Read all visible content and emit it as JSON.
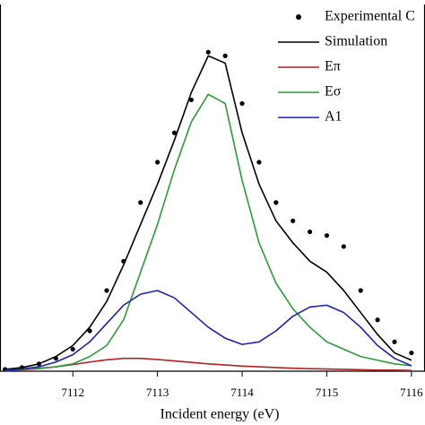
{
  "chart_data": {
    "type": "line",
    "x_label": "Incident energy (eV)",
    "x": [
      7111.2,
      7111.4,
      7111.6,
      7111.8,
      7112.0,
      7112.2,
      7112.4,
      7112.6,
      7112.8,
      7113.0,
      7113.2,
      7113.4,
      7113.6,
      7113.8,
      7114.0,
      7114.2,
      7114.4,
      7114.6,
      7114.8,
      7115.0,
      7115.2,
      7115.4,
      7115.6,
      7115.8,
      7116.0
    ],
    "xlim": [
      7111.14,
      7116.16
    ],
    "xticks": [
      7111,
      7112,
      7113,
      7114,
      7115,
      7116
    ],
    "ylim": [
      0,
      1
    ],
    "legend": "upper right",
    "series": [
      {
        "name": "Experimental C",
        "color": "#000000",
        "style": "dots",
        "values": [
          0.005,
          0.01,
          0.02,
          0.035,
          0.06,
          0.11,
          0.22,
          0.3,
          0.46,
          0.57,
          0.65,
          0.74,
          0.87,
          0.86,
          0.73,
          0.57,
          0.46,
          0.41,
          0.38,
          0.37,
          0.34,
          0.22,
          0.14,
          0.08,
          0.05
        ]
      },
      {
        "name": "Simulation",
        "color": "#000000",
        "style": "line",
        "values": [
          0.005,
          0.01,
          0.02,
          0.04,
          0.07,
          0.12,
          0.19,
          0.29,
          0.4,
          0.51,
          0.63,
          0.76,
          0.86,
          0.84,
          0.65,
          0.51,
          0.41,
          0.35,
          0.3,
          0.27,
          0.22,
          0.16,
          0.1,
          0.05,
          0.03
        ]
      },
      {
        "name": "Eπ",
        "color": "#b22222",
        "style": "line",
        "values": [
          0.002,
          0.004,
          0.007,
          0.012,
          0.018,
          0.025,
          0.031,
          0.035,
          0.035,
          0.032,
          0.028,
          0.024,
          0.02,
          0.017,
          0.014,
          0.012,
          0.01,
          0.008,
          0.007,
          0.006,
          0.005,
          0.004,
          0.003,
          0.003,
          0.002
        ]
      },
      {
        "name": "Eσ",
        "color": "#2e9b3a",
        "style": "line",
        "values": [
          0.003,
          0.005,
          0.008,
          0.012,
          0.02,
          0.04,
          0.07,
          0.14,
          0.27,
          0.4,
          0.55,
          0.68,
          0.755,
          0.73,
          0.52,
          0.35,
          0.24,
          0.17,
          0.12,
          0.08,
          0.06,
          0.04,
          0.03,
          0.02,
          0.015
        ]
      },
      {
        "name": "A1",
        "color": "#2020b0",
        "style": "line",
        "values": [
          0.003,
          0.006,
          0.012,
          0.025,
          0.045,
          0.08,
          0.13,
          0.18,
          0.21,
          0.22,
          0.2,
          0.16,
          0.12,
          0.09,
          0.073,
          0.08,
          0.11,
          0.15,
          0.175,
          0.18,
          0.16,
          0.12,
          0.07,
          0.035,
          0.015
        ]
      }
    ]
  }
}
